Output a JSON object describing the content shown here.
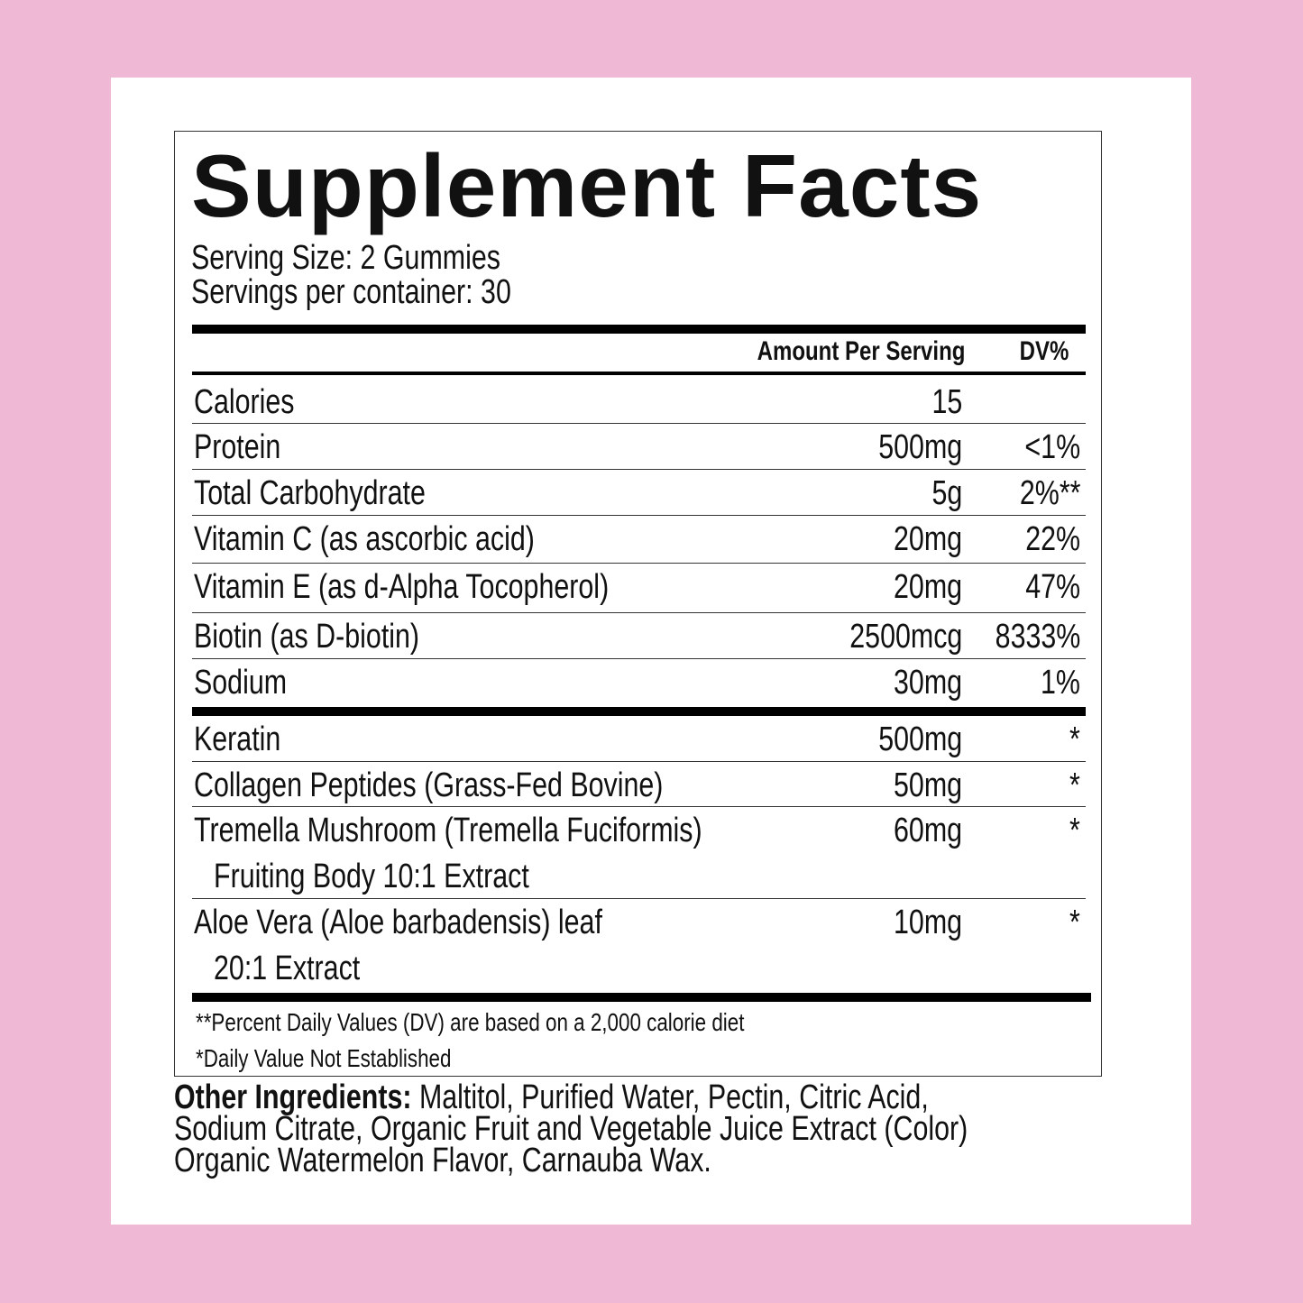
{
  "colors": {
    "background": "#efb9d6",
    "card": "#ffffff",
    "text": "#111111"
  },
  "title": "Supplement Facts",
  "serving_size": "Serving Size: 2 Gummies",
  "servings_per_container": "Servings per container: 30",
  "header": {
    "amount": "Amount Per Serving",
    "dv": "DV%"
  },
  "rows": [
    {
      "name": "Calories",
      "amount": "15",
      "dv": ""
    },
    {
      "name": "Protein",
      "amount": "500mg",
      "dv": "<1%"
    },
    {
      "name": "Total Carbohydrate",
      "amount": "5g",
      "dv": "2%**"
    },
    {
      "name": "Vitamin C (as ascorbic acid)",
      "amount": "20mg",
      "dv": "22%"
    },
    {
      "name": "Vitamin E (as d-Alpha Tocopherol)",
      "amount": "20mg",
      "dv": "47%"
    },
    {
      "name": "Biotin (as D-biotin)",
      "amount": "2500mcg",
      "dv": "8333%"
    },
    {
      "name": "Sodium",
      "amount": "30mg",
      "dv": "1%"
    }
  ],
  "rows2": [
    {
      "name": "Keratin",
      "amount": "500mg",
      "dv": "*"
    },
    {
      "name": "Collagen Peptides (Grass-Fed Bovine)",
      "amount": "50mg",
      "dv": "*"
    },
    {
      "name": "Tremella Mushroom (Tremella Fuciformis)",
      "name2": "Fruiting Body 10:1 Extract",
      "amount": "60mg",
      "dv": "*"
    },
    {
      "name": "Aloe Vera (Aloe barbadensis) leaf",
      "name2": "20:1 Extract",
      "amount": "10mg",
      "dv": "*"
    }
  ],
  "footnotes": {
    "dv_basis": "**Percent Daily Values (DV) are based on a 2,000 calorie diet",
    "not_established": "*Daily Value Not Established"
  },
  "other_ingredients": {
    "label": "Other Ingredients:",
    "lines": [
      "Maltitol, Purified Water, Pectin, Citric Acid,",
      "Sodium Citrate, Organic Fruit and Vegetable Juice Extract (Color)",
      "Organic Watermelon Flavor, Carnauba Wax."
    ]
  }
}
